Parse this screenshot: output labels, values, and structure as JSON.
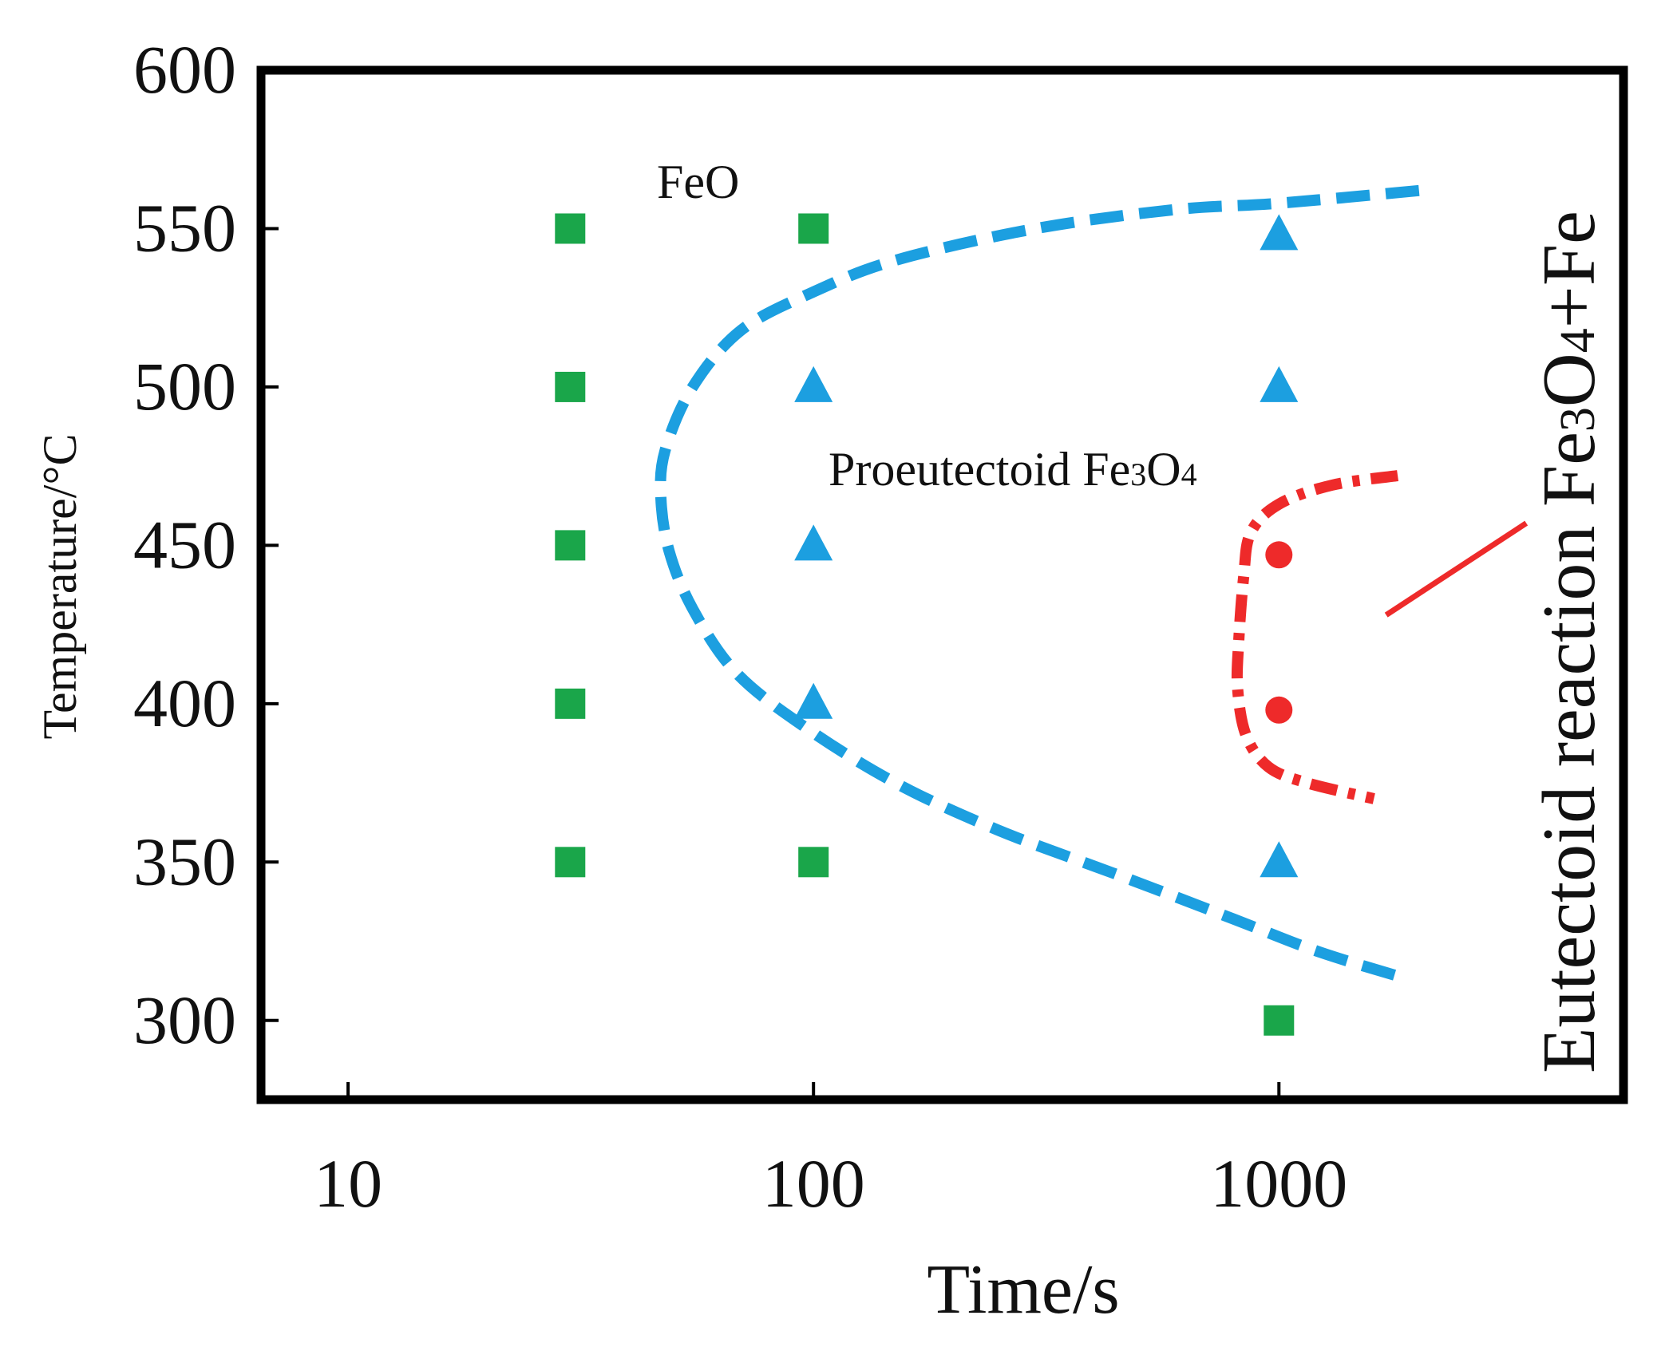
{
  "chart_data": {
    "type": "scatter",
    "title": "",
    "xlabel": "Time/s",
    "ylabel": "Temperature/°C",
    "x_scale": "log",
    "xlim": [
      6.5,
      5500
    ],
    "ylim": [
      275,
      600
    ],
    "x_ticks": [
      10,
      100,
      1000
    ],
    "x_tick_labels": [
      "10",
      "100",
      "1000"
    ],
    "y_ticks": [
      300,
      350,
      400,
      450,
      500,
      550,
      600
    ],
    "y_tick_labels": [
      "300",
      "350",
      "400",
      "450",
      "500",
      "550",
      "600"
    ],
    "grid": false,
    "colors": {
      "feo": "#1aa64a",
      "proeutectoid": "#1c9fe0",
      "eutectoid": "#ee2a2a",
      "axis": "#000000"
    },
    "series": [
      {
        "name": "FeO",
        "marker": "square",
        "color": "#1aa64a",
        "points": [
          {
            "x": 30,
            "y": 550
          },
          {
            "x": 30,
            "y": 500
          },
          {
            "x": 30,
            "y": 450
          },
          {
            "x": 30,
            "y": 400
          },
          {
            "x": 30,
            "y": 350
          },
          {
            "x": 100,
            "y": 550
          },
          {
            "x": 100,
            "y": 350
          },
          {
            "x": 1000,
            "y": 300
          }
        ]
      },
      {
        "name": "Proeutectoid Fe3O4",
        "marker": "triangle",
        "color": "#1c9fe0",
        "points": [
          {
            "x": 100,
            "y": 500
          },
          {
            "x": 100,
            "y": 450
          },
          {
            "x": 100,
            "y": 400
          },
          {
            "x": 1000,
            "y": 548
          },
          {
            "x": 1000,
            "y": 500
          },
          {
            "x": 1000,
            "y": 350
          }
        ]
      },
      {
        "name": "Eutectoid reaction Fe3O4+Fe",
        "marker": "circle",
        "color": "#ee2a2a",
        "points": [
          {
            "x": 1000,
            "y": 447
          },
          {
            "x": 1000,
            "y": 398
          }
        ]
      }
    ],
    "boundaries": [
      {
        "name": "FeO / Fe3O4 start curve",
        "style": "dashed",
        "color": "#1c9fe0",
        "points": [
          {
            "x": 2000,
            "y": 562
          },
          {
            "x": 1000,
            "y": 558
          },
          {
            "x": 600,
            "y": 556
          },
          {
            "x": 300,
            "y": 550
          },
          {
            "x": 150,
            "y": 540
          },
          {
            "x": 100,
            "y": 530
          },
          {
            "x": 70,
            "y": 518
          },
          {
            "x": 55,
            "y": 500
          },
          {
            "x": 48,
            "y": 480
          },
          {
            "x": 47,
            "y": 465
          },
          {
            "x": 49,
            "y": 448
          },
          {
            "x": 55,
            "y": 430
          },
          {
            "x": 68,
            "y": 410
          },
          {
            "x": 95,
            "y": 393
          },
          {
            "x": 150,
            "y": 375
          },
          {
            "x": 250,
            "y": 360
          },
          {
            "x": 450,
            "y": 346
          },
          {
            "x": 800,
            "y": 332
          },
          {
            "x": 1200,
            "y": 322
          },
          {
            "x": 1800,
            "y": 314
          }
        ]
      },
      {
        "name": "Eutectoid start curve",
        "style": "dash-dot",
        "color": "#ee2a2a",
        "points": [
          {
            "x": 1800,
            "y": 472
          },
          {
            "x": 1300,
            "y": 469
          },
          {
            "x": 1000,
            "y": 463
          },
          {
            "x": 870,
            "y": 454
          },
          {
            "x": 840,
            "y": 440
          },
          {
            "x": 820,
            "y": 420
          },
          {
            "x": 815,
            "y": 405
          },
          {
            "x": 850,
            "y": 390
          },
          {
            "x": 950,
            "y": 380
          },
          {
            "x": 1150,
            "y": 375
          },
          {
            "x": 1600,
            "y": 370
          }
        ]
      }
    ],
    "annotations": [
      {
        "text_parts": [
          "FeO"
        ],
        "x": 50,
        "y": 563
      },
      {
        "text_parts": [
          "Proeutectoid Fe",
          "3",
          "O",
          "4"
        ],
        "x": 100,
        "y": 471
      },
      {
        "text_parts": [
          "Eutectoid reaction Fe",
          "3",
          "O",
          "4",
          "+Fe"
        ],
        "orientation": "vertical"
      }
    ],
    "leader_line": {
      "from": {
        "x": 1700,
        "y": 428
      },
      "to": {
        "x": 3400,
        "y": 457
      },
      "color": "#ee2a2a"
    }
  }
}
